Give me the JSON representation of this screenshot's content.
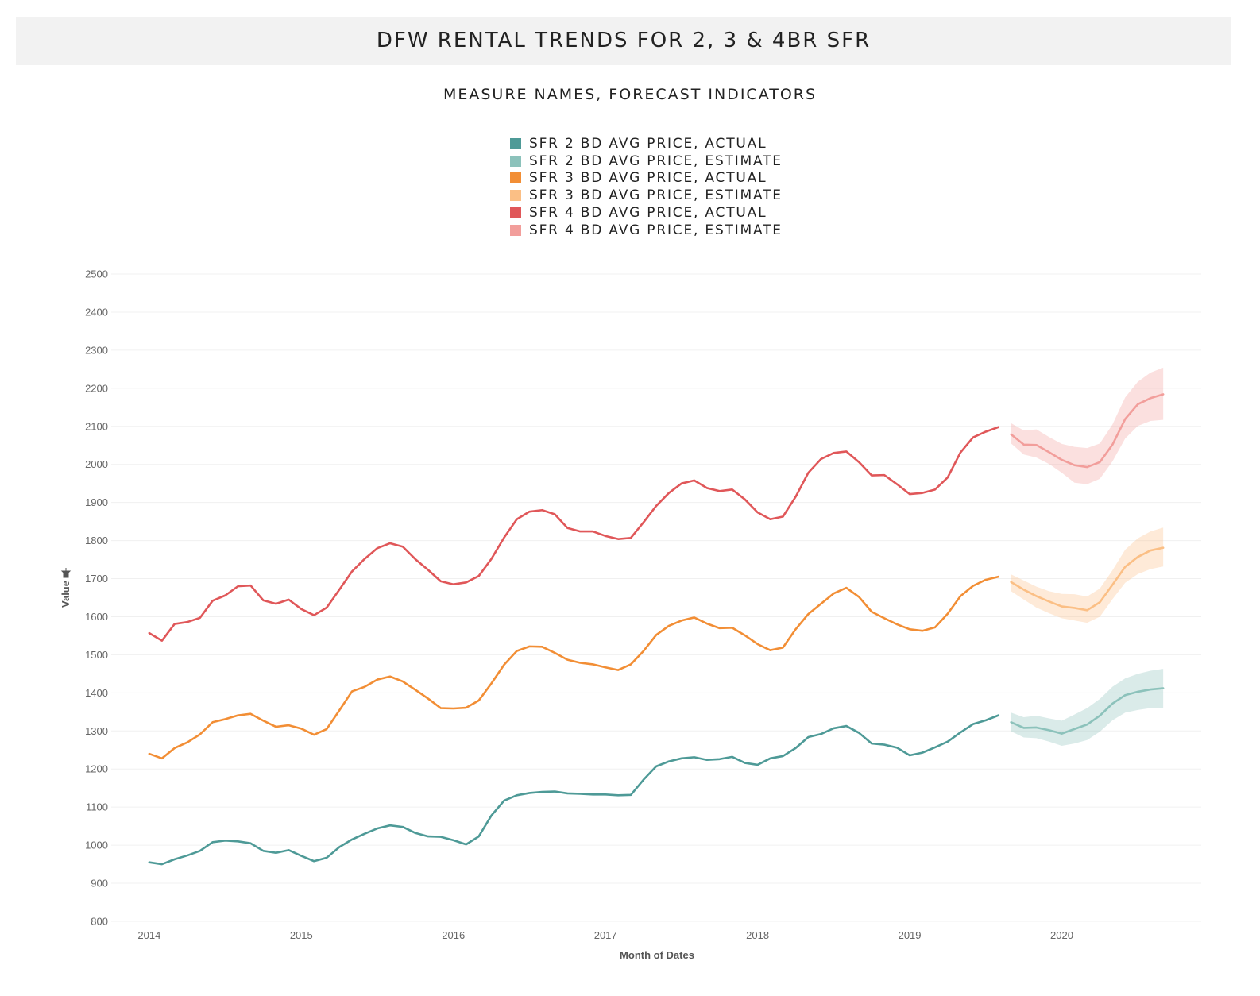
{
  "header": {
    "title": "DFW RENTAL TRENDS FOR 2, 3 & 4BR SFR"
  },
  "legend": {
    "title": "MEASURE NAMES, FORECAST INDICATORS",
    "items": [
      {
        "label": "SFR 2 BD AVG PRICE, ACTUAL",
        "color": "#4e9a97"
      },
      {
        "label": "SFR 2 BD AVG PRICE, ESTIMATE",
        "color": "#8cc2bb"
      },
      {
        "label": "SFR 3 BD AVG PRICE, ACTUAL",
        "color": "#f28e35"
      },
      {
        "label": "SFR 3 BD AVG PRICE, ESTIMATE",
        "color": "#fbbf85"
      },
      {
        "label": "SFR 4 BD AVG PRICE, ACTUAL",
        "color": "#e05759"
      },
      {
        "label": "SFR 4 BD AVG PRICE, ESTIMATE",
        "color": "#f29e9b"
      }
    ]
  },
  "chart_data": {
    "type": "line",
    "xlabel": "Month of Dates",
    "ylabel": "Value",
    "ylim": [
      800,
      2500
    ],
    "yticks": [
      800,
      900,
      1000,
      1100,
      1200,
      1300,
      1400,
      1500,
      1600,
      1700,
      1800,
      1900,
      2000,
      2100,
      2200,
      2300,
      2400,
      2500
    ],
    "xlim": [
      "2013-10",
      "2020-12"
    ],
    "xticks": [
      "2014",
      "2015",
      "2016",
      "2017",
      "2018",
      "2019",
      "2020"
    ],
    "grid": true,
    "actual_x": [
      "2014-01",
      "2014-02",
      "2014-03",
      "2014-04",
      "2014-05",
      "2014-06",
      "2014-07",
      "2014-08",
      "2014-09",
      "2014-10",
      "2014-11",
      "2014-12",
      "2015-01",
      "2015-02",
      "2015-03",
      "2015-04",
      "2015-05",
      "2015-06",
      "2015-07",
      "2015-08",
      "2015-09",
      "2015-10",
      "2015-11",
      "2015-12",
      "2016-01",
      "2016-02",
      "2016-03",
      "2016-04",
      "2016-05",
      "2016-06",
      "2016-07",
      "2016-08",
      "2016-09",
      "2016-10",
      "2016-11",
      "2016-12",
      "2017-01",
      "2017-02",
      "2017-03",
      "2017-04",
      "2017-05",
      "2017-06",
      "2017-07",
      "2017-08",
      "2017-09",
      "2017-10",
      "2017-11",
      "2017-12",
      "2018-01",
      "2018-02",
      "2018-03",
      "2018-04",
      "2018-05",
      "2018-06",
      "2018-07",
      "2018-08",
      "2018-09",
      "2018-10",
      "2018-11",
      "2018-12",
      "2019-01",
      "2019-02",
      "2019-03",
      "2019-04",
      "2019-05",
      "2019-06",
      "2019-07",
      "2019-08"
    ],
    "estimate_x": [
      "2019-09",
      "2019-10",
      "2019-11",
      "2019-12",
      "2020-01",
      "2020-02",
      "2020-03",
      "2020-04",
      "2020-05",
      "2020-06",
      "2020-07",
      "2020-08",
      "2020-09"
    ],
    "series": [
      {
        "name": "SFR 2 BD AVG PRICE, ACTUAL",
        "values": [
          955,
          950,
          963,
          973,
          985,
          1008,
          1012,
          1010,
          1005,
          985,
          980,
          987,
          972,
          958,
          967,
          995,
          1015,
          1030,
          1044,
          1052,
          1048,
          1032,
          1023,
          1022,
          1013,
          1002,
          1023,
          1078,
          1117,
          1131,
          1137,
          1140,
          1141,
          1136,
          1135,
          1133,
          1133,
          1131,
          1132,
          1172,
          1207,
          1220,
          1228,
          1231,
          1224,
          1226,
          1232,
          1216,
          1211,
          1228,
          1234,
          1255,
          1284,
          1292,
          1307,
          1313,
          1295,
          1267,
          1264,
          1256,
          1236,
          1243,
          1257,
          1272,
          1296,
          1318,
          1328,
          1341
        ]
      },
      {
        "name": "SFR 2 BD AVG PRICE, ESTIMATE",
        "values": [
          1323,
          1308,
          1309,
          1302,
          1293,
          1305,
          1317,
          1340,
          1372,
          1394,
          1403,
          1409,
          1412
        ],
        "lower": [
          1299,
          1283,
          1281,
          1272,
          1261,
          1267,
          1276,
          1298,
          1328,
          1348,
          1355,
          1360,
          1361
        ],
        "upper": [
          1348,
          1336,
          1340,
          1333,
          1327,
          1343,
          1360,
          1384,
          1416,
          1438,
          1450,
          1458,
          1463
        ]
      },
      {
        "name": "SFR 3 BD AVG PRICE, ACTUAL",
        "values": [
          1240,
          1228,
          1255,
          1270,
          1291,
          1323,
          1331,
          1341,
          1345,
          1327,
          1311,
          1315,
          1306,
          1290,
          1305,
          1354,
          1404,
          1416,
          1435,
          1443,
          1430,
          1408,
          1385,
          1360,
          1359,
          1361,
          1380,
          1425,
          1474,
          1510,
          1522,
          1521,
          1505,
          1487,
          1479,
          1475,
          1467,
          1460,
          1475,
          1510,
          1552,
          1576,
          1590,
          1598,
          1582,
          1570,
          1571,
          1551,
          1528,
          1512,
          1519,
          1567,
          1607,
          1634,
          1661,
          1676,
          1652,
          1613,
          1596,
          1580,
          1567,
          1563,
          1572,
          1608,
          1654,
          1681,
          1697,
          1705
        ]
      },
      {
        "name": "SFR 3 BD AVG PRICE, ESTIMATE",
        "values": [
          1691,
          1671,
          1654,
          1640,
          1627,
          1623,
          1617,
          1638,
          1684,
          1731,
          1757,
          1774,
          1781
        ],
        "lower": [
          1667,
          1645,
          1624,
          1609,
          1596,
          1590,
          1584,
          1600,
          1646,
          1689,
          1712,
          1725,
          1732
        ],
        "upper": [
          1711,
          1695,
          1679,
          1667,
          1660,
          1659,
          1653,
          1674,
          1722,
          1776,
          1806,
          1824,
          1834
        ]
      },
      {
        "name": "SFR 4 BD AVG PRICE, ACTUAL",
        "values": [
          1557,
          1537,
          1581,
          1586,
          1597,
          1642,
          1656,
          1680,
          1682,
          1643,
          1634,
          1645,
          1620,
          1604,
          1624,
          1671,
          1719,
          1752,
          1780,
          1793,
          1784,
          1751,
          1723,
          1693,
          1685,
          1690,
          1707,
          1752,
          1808,
          1856,
          1876,
          1880,
          1869,
          1833,
          1824,
          1824,
          1812,
          1804,
          1807,
          1848,
          1891,
          1925,
          1950,
          1958,
          1938,
          1930,
          1934,
          1908,
          1874,
          1856,
          1863,
          1915,
          1978,
          2014,
          2030,
          2034,
          2006,
          1971,
          1972,
          1948,
          1922,
          1925,
          1934,
          1966,
          2031,
          2071,
          2086,
          2098
        ]
      },
      {
        "name": "SFR 4 BD AVG PRICE, ESTIMATE",
        "values": [
          2079,
          2052,
          2051,
          2032,
          2012,
          1998,
          1993,
          2006,
          2052,
          2119,
          2158,
          2174,
          2184
        ],
        "lower": [
          2055,
          2026,
          2018,
          2001,
          1978,
          1952,
          1948,
          1962,
          2008,
          2068,
          2101,
          2114,
          2117
        ],
        "upper": [
          2108,
          2089,
          2092,
          2072,
          2054,
          2046,
          2043,
          2055,
          2105,
          2176,
          2217,
          2241,
          2254
        ]
      }
    ]
  }
}
